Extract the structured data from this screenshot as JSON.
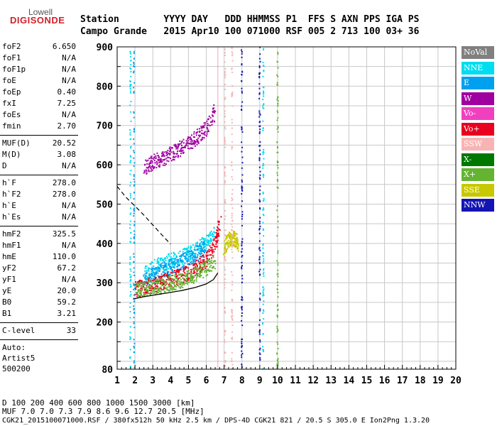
{
  "logo": {
    "line1": "Lowell",
    "line2": "DIGISONDE"
  },
  "header": {
    "row1": "Station        YYYY DAY   DDD HHMMSS P1  FFS S AXN PPS IGA PS",
    "row2": "Campo Grande   2015 Apr10 100 071000 RSF 005 2 713 100 03+ 36"
  },
  "params": {
    "group1": [
      {
        "k": "foF2",
        "v": "6.650"
      },
      {
        "k": "foF1",
        "v": "N/A"
      },
      {
        "k": "foF1p",
        "v": "N/A"
      },
      {
        "k": "foE",
        "v": "N/A"
      },
      {
        "k": "foEp",
        "v": "0.40"
      },
      {
        "k": "fxI",
        "v": "7.25"
      },
      {
        "k": "foEs",
        "v": "N/A"
      },
      {
        "k": "fmin",
        "v": "2.70"
      }
    ],
    "group2": [
      {
        "k": "MUF(D)",
        "v": "20.52"
      },
      {
        "k": "M(D)",
        "v": "3.08"
      },
      {
        "k": "D",
        "v": "N/A"
      }
    ],
    "group3": [
      {
        "k": "h`F",
        "v": "278.0"
      },
      {
        "k": "h`F2",
        "v": "278.0"
      },
      {
        "k": "h`E",
        "v": "N/A"
      },
      {
        "k": "h`Es",
        "v": "N/A"
      }
    ],
    "group4": [
      {
        "k": "hmF2",
        "v": "325.5"
      },
      {
        "k": "hmF1",
        "v": "N/A"
      },
      {
        "k": "hmE",
        "v": "110.0"
      },
      {
        "k": "yF2",
        "v": "67.2"
      },
      {
        "k": "yF1",
        "v": "N/A"
      },
      {
        "k": "yE",
        "v": "20.0"
      },
      {
        "k": "B0",
        "v": "59.2"
      },
      {
        "k": "B1",
        "v": "3.21"
      }
    ],
    "group5": [
      {
        "k": "C-level",
        "v": "33"
      }
    ],
    "auto": [
      "Auto:",
      "Artist5",
      "500200"
    ]
  },
  "legend": [
    {
      "label": "NoVal",
      "color": "#808080"
    },
    {
      "label": "NNE",
      "color": "#00dcf0"
    },
    {
      "label": "E",
      "color": "#00a0f0"
    },
    {
      "label": "W",
      "color": "#a000a0"
    },
    {
      "label": "Vo-",
      "color": "#f040c0"
    },
    {
      "label": "Vo+",
      "color": "#e8001e"
    },
    {
      "label": "SSW",
      "color": "#f8b4b4"
    },
    {
      "label": "X-",
      "color": "#007800"
    },
    {
      "label": "X+",
      "color": "#64b432"
    },
    {
      "label": "SSE",
      "color": "#c8c800"
    },
    {
      "label": "NNW",
      "color": "#1414b4"
    }
  ],
  "chart_data": {
    "type": "scatter",
    "title": "",
    "xlabel": "",
    "ylabel": "",
    "xlim": [
      1,
      20
    ],
    "ylim": [
      80,
      900
    ],
    "x_ticks": [
      1,
      2,
      3,
      4,
      5,
      6,
      7,
      8,
      9,
      10,
      11,
      12,
      13,
      14,
      15,
      16,
      17,
      18,
      19,
      20
    ],
    "y_ticks": [
      80,
      200,
      300,
      400,
      500,
      600,
      700,
      800,
      900
    ],
    "grid": true,
    "foF2": 6.65,
    "fxI": 7.25,
    "profile_curve": {
      "x": [
        1.9,
        2.3,
        3.0,
        3.8,
        4.6,
        5.4,
        6.0,
        6.4,
        6.65
      ],
      "y": [
        258,
        263,
        268,
        274,
        280,
        288,
        297,
        308,
        325
      ]
    },
    "trace_curve": {
      "x": [
        1.0,
        1.5,
        2.0,
        2.5,
        3.0,
        3.5,
        4.0
      ],
      "y": [
        545,
        517,
        495,
        472,
        447,
        422,
        398
      ]
    },
    "series": [
      {
        "name": "NNE",
        "color": "#00dcf0",
        "x": [
          2.5,
          3.0,
          3.5,
          4.0,
          4.5,
          5.0,
          5.5,
          6.0,
          6.5
        ],
        "y": [
          318,
          335,
          348,
          355,
          362,
          372,
          385,
          402,
          430
        ]
      },
      {
        "name": "E",
        "color": "#00a0f0",
        "x": [
          2.5,
          3.0,
          3.5,
          4.0,
          4.5,
          5.0,
          5.5,
          6.0
        ],
        "y": [
          302,
          318,
          330,
          340,
          350,
          360,
          375,
          395
        ]
      },
      {
        "name": "W",
        "color": "#a000a0",
        "x": [
          2.5,
          3.0,
          3.5,
          4.0,
          4.5,
          5.0,
          5.5,
          6.0,
          6.5
        ],
        "y": [
          590,
          605,
          615,
          625,
          640,
          655,
          670,
          690,
          735
        ]
      },
      {
        "name": "Vo+",
        "color": "#e8001e",
        "x": [
          2.0,
          2.5,
          3.0,
          3.5,
          4.0,
          4.5,
          5.0,
          5.5,
          6.0,
          6.5,
          6.8
        ],
        "y": [
          283,
          288,
          294,
          300,
          307,
          315,
          325,
          338,
          358,
          395,
          460
        ]
      },
      {
        "name": "X+",
        "color": "#64b432",
        "x": [
          2.0,
          2.5,
          3.0,
          3.5,
          4.0,
          4.5,
          5.0,
          5.5,
          6.0,
          6.5
        ],
        "y": [
          278,
          282,
          287,
          292,
          298,
          305,
          313,
          322,
          335,
          355
        ]
      },
      {
        "name": "SSE",
        "color": "#c8c800",
        "x": [
          7.0,
          7.2,
          7.4,
          7.6,
          7.8
        ],
        "y": [
          390,
          405,
          415,
          410,
          400
        ]
      }
    ]
  },
  "bottom": {
    "d_line": "D    100  200  400  600  800 1000 1500 3000 [km]",
    "muf_line": "MUF  7.0  7.0  7.3  7.9  8.6  9.6 12.7 20.5 [MHz]",
    "footer": "CGK21_2015100071000.RSF / 380fx512h 50 kHz 2.5 km / DPS-4D CGK21 821 / 20.5 S 305.0 E Ion2Png 1.3.20"
  }
}
